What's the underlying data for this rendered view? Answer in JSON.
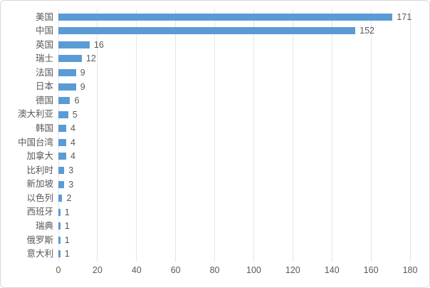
{
  "chart_data": {
    "type": "bar",
    "orientation": "horizontal",
    "title": "",
    "categories": [
      "美国",
      "中国",
      "英国",
      "瑞士",
      "法国",
      "日本",
      "德国",
      "澳大利亚",
      "韩国",
      "中国台湾",
      "加拿大",
      "比利时",
      "新加坡",
      "以色列",
      "西班牙",
      "瑞典",
      "俄罗斯",
      "意大利"
    ],
    "values": [
      171,
      152,
      16,
      12,
      9,
      9,
      6,
      5,
      4,
      4,
      4,
      3,
      3,
      2,
      1,
      1,
      1,
      1
    ],
    "xlabel": "",
    "ylabel": "",
    "xlim": [
      0,
      180
    ],
    "x_ticks": [
      "0",
      "20",
      "40",
      "60",
      "80",
      "100",
      "120",
      "140",
      "160",
      "180"
    ],
    "grid": "vertical",
    "legend": "none",
    "data_labels": true
  },
  "style": {
    "bar_color": "#5B9BD5",
    "grid_color": "#E2E5E9",
    "text_color": "#595959",
    "border_color": "#D8D8D8",
    "background": "#FFFFFF"
  }
}
